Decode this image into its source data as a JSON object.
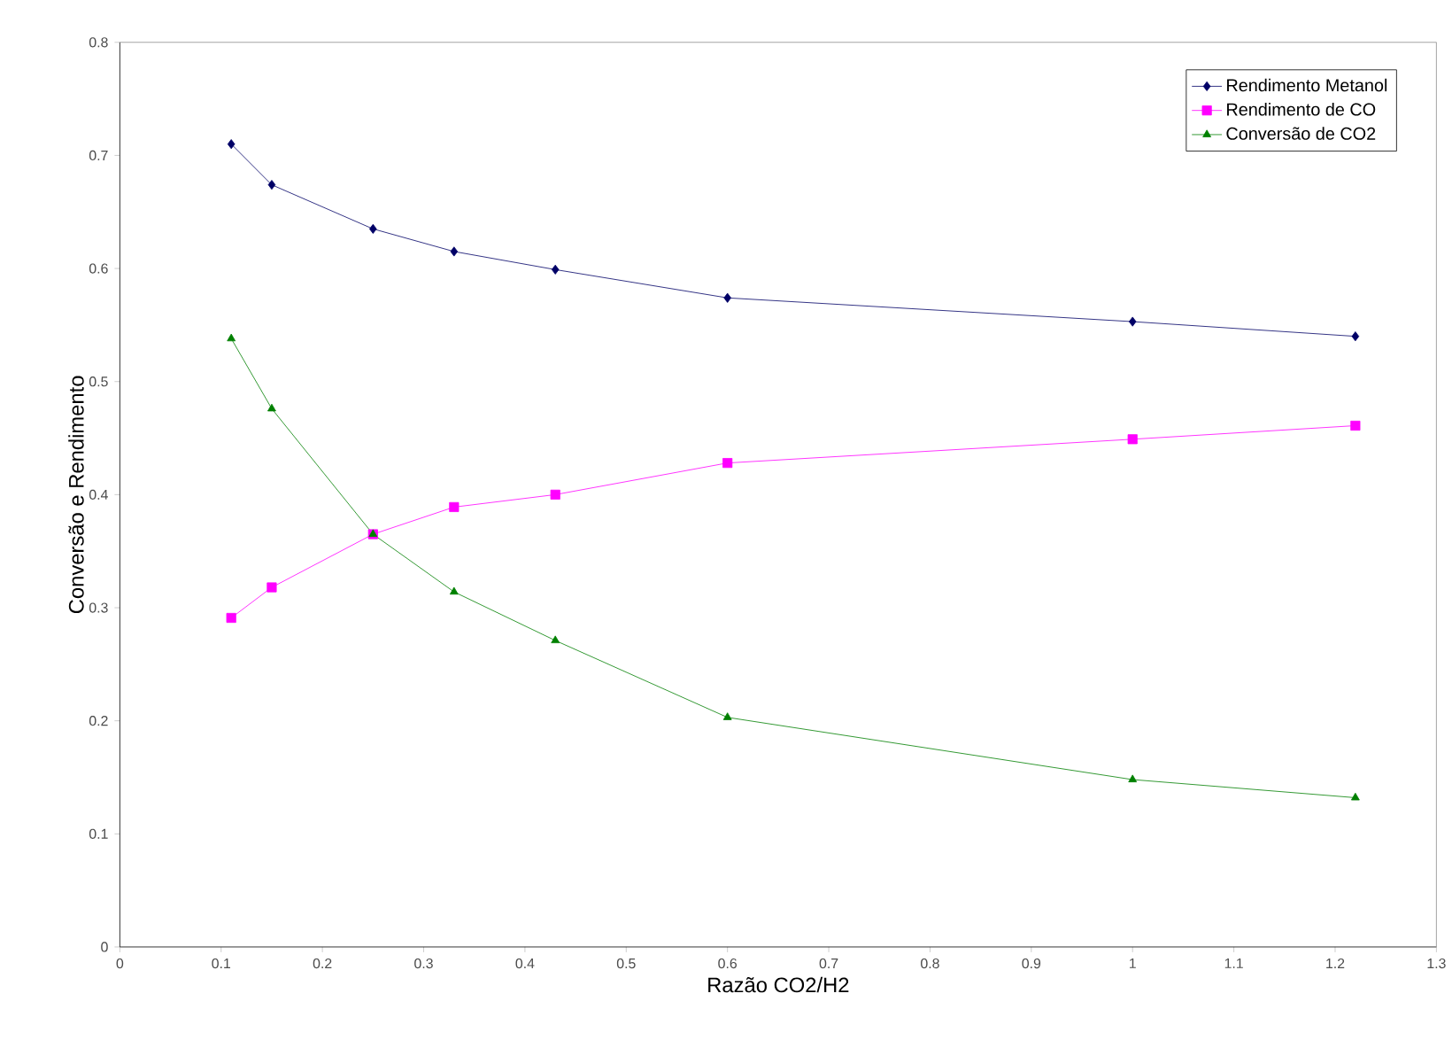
{
  "chart_data": {
    "type": "line",
    "xlabel": "Razão CO2/H2",
    "ylabel": "Conversão e Rendimento",
    "x": [
      0.11,
      0.15,
      0.25,
      0.33,
      0.43,
      0.6,
      1.0,
      1.22
    ],
    "series": [
      {
        "name": "Rendimento Metanol",
        "color": "#000066",
        "marker": "diamond",
        "values": [
          0.71,
          0.674,
          0.635,
          0.615,
          0.599,
          0.574,
          0.553,
          0.54
        ]
      },
      {
        "name": "Rendimento de CO",
        "color": "#ff00ff",
        "marker": "square",
        "values": [
          0.291,
          0.318,
          0.365,
          0.389,
          0.4,
          0.428,
          0.449,
          0.461
        ]
      },
      {
        "name": "Conversão de CO2",
        "color": "#008000",
        "marker": "triangle",
        "values": [
          0.538,
          0.476,
          0.365,
          0.314,
          0.271,
          0.203,
          0.148,
          0.132
        ]
      }
    ],
    "xlim": [
      0,
      1.3
    ],
    "xticks": [
      0,
      0.1,
      0.2,
      0.3,
      0.4,
      0.5,
      0.6,
      0.7,
      0.8,
      0.9,
      1,
      1.1,
      1.2,
      1.3
    ],
    "ylim": [
      0,
      0.8
    ],
    "yticks": [
      0,
      0.1,
      0.2,
      0.3,
      0.4,
      0.5,
      0.6,
      0.7,
      0.8
    ],
    "grid": false,
    "legend": "top right",
    "line_style": "solid"
  }
}
